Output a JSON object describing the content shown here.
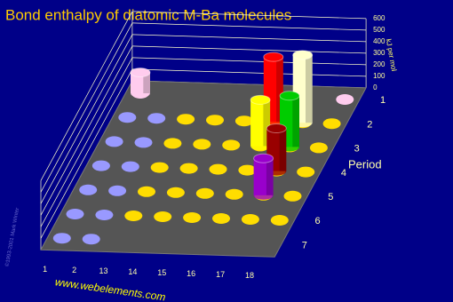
{
  "chart_data": {
    "type": "bar3d",
    "title": "Bond enthalpy of diatomic M-Ba molecules",
    "z_label": "kJ per mol",
    "period_label": "Period",
    "footer": "www.webelements.com",
    "copyright": "©1993-2001 Mark Winter",
    "categories": [
      "1",
      "2",
      "13",
      "14",
      "15",
      "16",
      "17",
      "18"
    ],
    "periods": [
      "1",
      "2",
      "3",
      "4",
      "5",
      "6",
      "7"
    ],
    "values": [
      [
        180,
        null,
        null,
        null,
        null,
        null,
        null,
        null
      ],
      [
        null,
        null,
        null,
        null,
        null,
        562,
        587,
        null
      ],
      [
        null,
        null,
        null,
        null,
        null,
        400,
        443,
        null
      ],
      [
        null,
        null,
        null,
        null,
        null,
        null,
        370,
        null
      ],
      [
        null,
        null,
        null,
        null,
        null,
        null,
        320,
        null
      ],
      [
        null,
        null,
        null,
        null,
        null,
        null,
        null,
        null
      ],
      [
        null,
        null,
        null,
        null,
        null,
        null,
        null,
        null
      ]
    ],
    "colors": [
      [
        "#ffccee",
        null,
        null,
        null,
        null,
        null,
        null,
        null
      ],
      [
        null,
        null,
        null,
        null,
        null,
        "#ff0000",
        "#ffffcc",
        null
      ],
      [
        null,
        null,
        null,
        null,
        null,
        "#ffff00",
        "#00cc00",
        null
      ],
      [
        null,
        null,
        null,
        null,
        null,
        null,
        "#990000",
        null
      ],
      [
        null,
        null,
        null,
        null,
        null,
        null,
        "#9900cc",
        null
      ],
      [
        null,
        null,
        null,
        null,
        null,
        null,
        null,
        null
      ],
      [
        null,
        null,
        null,
        null,
        null,
        null,
        null,
        null
      ]
    ],
    "ylim": [
      0,
      600
    ],
    "yticks": [
      0,
      100,
      200,
      300,
      400,
      500,
      600
    ],
    "grid": true
  }
}
